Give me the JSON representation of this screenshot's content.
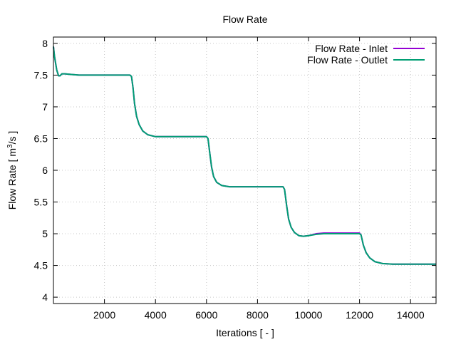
{
  "chart_data": {
    "type": "line",
    "title": "Flow Rate",
    "xlabel": "Iterations [ - ]",
    "ylabel_prefix": "Flow Rate [ m",
    "ylabel_sup": "3",
    "ylabel_suffix": "/s ]",
    "xlim": [
      0,
      15000
    ],
    "ylim": [
      3.9,
      8.1
    ],
    "xticks": [
      2000,
      4000,
      6000,
      8000,
      10000,
      12000,
      14000
    ],
    "xtick_labels": [
      "2000",
      "4000",
      "6000",
      "8000",
      "10000",
      "12000",
      "14000"
    ],
    "yticks": [
      4,
      4.5,
      5,
      5.5,
      6,
      6.5,
      7,
      7.5,
      8
    ],
    "ytick_labels": [
      "4",
      "4.5",
      "5",
      "5.5",
      "6",
      "6.5",
      "7",
      "7.5",
      "8"
    ],
    "grid": true,
    "legend_position": "top-right",
    "series": [
      {
        "name": "Flow Rate - Inlet",
        "color": "#9400d3",
        "points": [
          [
            0,
            7.95
          ],
          [
            40,
            7.8
          ],
          [
            80,
            7.7
          ],
          [
            130,
            7.58
          ],
          [
            200,
            7.49
          ],
          [
            260,
            7.49
          ],
          [
            330,
            7.52
          ],
          [
            450,
            7.52
          ],
          [
            700,
            7.51
          ],
          [
            1000,
            7.5
          ],
          [
            3000,
            7.5
          ],
          [
            3060,
            7.48
          ],
          [
            3120,
            7.3
          ],
          [
            3180,
            7.05
          ],
          [
            3260,
            6.85
          ],
          [
            3360,
            6.72
          ],
          [
            3500,
            6.62
          ],
          [
            3700,
            6.56
          ],
          [
            4000,
            6.53
          ],
          [
            6000,
            6.53
          ],
          [
            6060,
            6.5
          ],
          [
            6120,
            6.3
          ],
          [
            6200,
            6.05
          ],
          [
            6280,
            5.9
          ],
          [
            6400,
            5.81
          ],
          [
            6600,
            5.76
          ],
          [
            6900,
            5.74
          ],
          [
            9000,
            5.74
          ],
          [
            9060,
            5.7
          ],
          [
            9140,
            5.45
          ],
          [
            9220,
            5.23
          ],
          [
            9320,
            5.1
          ],
          [
            9450,
            5.02
          ],
          [
            9620,
            4.97
          ],
          [
            9800,
            4.96
          ],
          [
            10000,
            4.97
          ],
          [
            10300,
            5.0
          ],
          [
            10600,
            5.01
          ],
          [
            12000,
            5.01
          ],
          [
            12060,
            4.98
          ],
          [
            12150,
            4.82
          ],
          [
            12260,
            4.7
          ],
          [
            12400,
            4.62
          ],
          [
            12600,
            4.56
          ],
          [
            12900,
            4.53
          ],
          [
            13300,
            4.52
          ],
          [
            15000,
            4.52
          ]
        ]
      },
      {
        "name": "Flow Rate - Outlet",
        "color": "#009e73",
        "points": [
          [
            0,
            7.95
          ],
          [
            40,
            7.8
          ],
          [
            80,
            7.7
          ],
          [
            130,
            7.58
          ],
          [
            200,
            7.49
          ],
          [
            260,
            7.49
          ],
          [
            330,
            7.52
          ],
          [
            450,
            7.52
          ],
          [
            700,
            7.51
          ],
          [
            1000,
            7.5
          ],
          [
            3000,
            7.5
          ],
          [
            3060,
            7.48
          ],
          [
            3120,
            7.3
          ],
          [
            3180,
            7.05
          ],
          [
            3260,
            6.85
          ],
          [
            3360,
            6.72
          ],
          [
            3500,
            6.62
          ],
          [
            3700,
            6.56
          ],
          [
            4000,
            6.53
          ],
          [
            6000,
            6.53
          ],
          [
            6060,
            6.5
          ],
          [
            6120,
            6.3
          ],
          [
            6200,
            6.05
          ],
          [
            6280,
            5.9
          ],
          [
            6400,
            5.81
          ],
          [
            6600,
            5.76
          ],
          [
            6900,
            5.74
          ],
          [
            9000,
            5.74
          ],
          [
            9060,
            5.7
          ],
          [
            9140,
            5.45
          ],
          [
            9220,
            5.23
          ],
          [
            9320,
            5.1
          ],
          [
            9450,
            5.02
          ],
          [
            9620,
            4.97
          ],
          [
            9800,
            4.96
          ],
          [
            10000,
            4.97
          ],
          [
            10300,
            4.99
          ],
          [
            10600,
            5.0
          ],
          [
            12000,
            5.0
          ],
          [
            12060,
            4.98
          ],
          [
            12150,
            4.82
          ],
          [
            12260,
            4.7
          ],
          [
            12400,
            4.62
          ],
          [
            12600,
            4.56
          ],
          [
            12900,
            4.53
          ],
          [
            13300,
            4.52
          ],
          [
            15000,
            4.52
          ]
        ]
      }
    ]
  }
}
